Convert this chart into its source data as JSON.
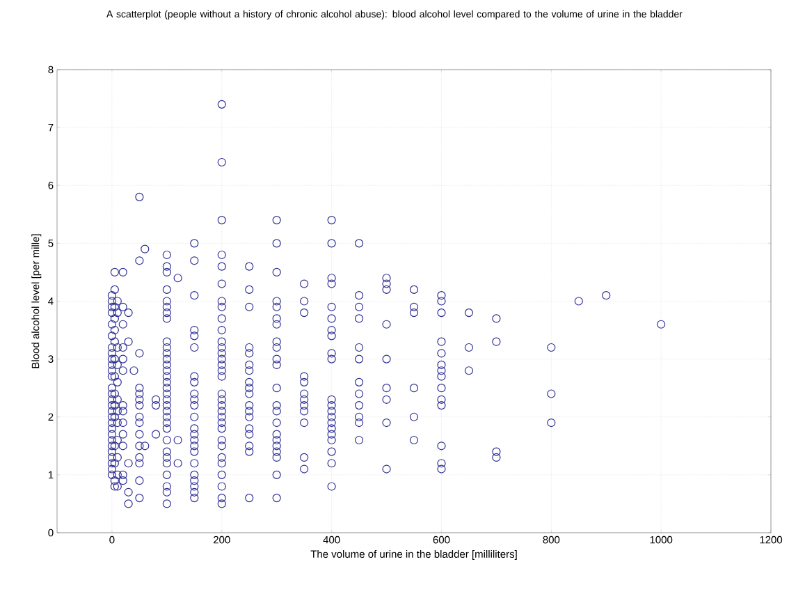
{
  "chart_data": {
    "type": "scatter",
    "title": "A scatterplot (people without a history of chronic alcohol abuse): blood alcohol level compared to the volume of urine in the bladder",
    "xlabel": "The volume of urine in the bladder [milliliters]",
    "ylabel": "Blood alcohol level [per mille]",
    "xlim": [
      -100,
      1200
    ],
    "ylim": [
      0,
      8
    ],
    "xticks": [
      0,
      200,
      400,
      600,
      800,
      1000,
      1200
    ],
    "yticks": [
      0,
      1,
      2,
      3,
      4,
      5,
      6,
      7,
      8
    ],
    "grid": true,
    "marker": "circle",
    "color": "#2e2e96",
    "x": [
      0,
      0,
      0,
      0,
      0,
      0,
      0,
      0,
      0,
      0,
      0,
      0,
      0,
      0,
      0,
      0,
      0,
      0,
      0,
      0,
      0,
      0,
      0,
      0,
      0,
      0,
      0,
      0,
      5,
      5,
      5,
      5,
      5,
      5,
      5,
      5,
      5,
      5,
      5,
      5,
      5,
      5,
      5,
      10,
      10,
      10,
      10,
      10,
      10,
      10,
      10,
      10,
      10,
      10,
      10,
      20,
      20,
      20,
      20,
      20,
      20,
      20,
      20,
      20,
      20,
      20,
      20,
      20,
      30,
      30,
      30,
      30,
      30,
      40,
      50,
      50,
      50,
      50,
      50,
      50,
      50,
      50,
      50,
      50,
      50,
      50,
      50,
      50,
      50,
      60,
      60,
      80,
      80,
      80,
      100,
      100,
      100,
      100,
      100,
      100,
      100,
      100,
      100,
      100,
      100,
      100,
      100,
      100,
      100,
      100,
      100,
      100,
      100,
      100,
      100,
      100,
      100,
      100,
      100,
      100,
      100,
      100,
      100,
      100,
      100,
      100,
      120,
      120,
      120,
      150,
      150,
      150,
      150,
      150,
      150,
      150,
      150,
      150,
      150,
      150,
      150,
      150,
      150,
      150,
      150,
      150,
      150,
      150,
      150,
      150,
      150,
      150,
      200,
      200,
      200,
      200,
      200,
      200,
      200,
      200,
      200,
      200,
      200,
      200,
      200,
      200,
      200,
      200,
      200,
      200,
      200,
      200,
      200,
      200,
      200,
      200,
      200,
      200,
      200,
      200,
      200,
      200,
      200,
      200,
      250,
      250,
      250,
      250,
      250,
      250,
      250,
      250,
      250,
      250,
      250,
      250,
      250,
      250,
      250,
      250,
      250,
      250,
      300,
      300,
      300,
      300,
      300,
      300,
      300,
      300,
      300,
      300,
      300,
      300,
      300,
      300,
      300,
      300,
      300,
      300,
      300,
      300,
      300,
      300,
      350,
      350,
      350,
      350,
      350,
      350,
      350,
      350,
      350,
      350,
      350,
      350,
      400,
      400,
      400,
      400,
      400,
      400,
      400,
      400,
      400,
      400,
      400,
      400,
      400,
      400,
      400,
      400,
      400,
      400,
      400,
      400,
      400,
      450,
      450,
      450,
      450,
      450,
      450,
      450,
      450,
      450,
      450,
      450,
      450,
      500,
      500,
      500,
      500,
      500,
      500,
      500,
      500,
      500,
      550,
      550,
      550,
      550,
      550,
      550,
      600,
      600,
      600,
      600,
      600,
      600,
      600,
      600,
      600,
      600,
      600,
      600,
      600,
      600,
      650,
      650,
      650,
      700,
      700,
      700,
      700,
      800,
      800,
      800,
      850,
      900,
      1000
    ],
    "values": [
      1.0,
      1.1,
      1.2,
      1.3,
      1.4,
      1.5,
      1.6,
      1.7,
      1.8,
      1.9,
      2.0,
      2.1,
      2.2,
      2.3,
      2.4,
      2.5,
      2.7,
      2.8,
      2.9,
      3.0,
      3.1,
      3.2,
      3.4,
      3.6,
      3.8,
      3.9,
      4.0,
      4.1,
      4.2,
      4.5,
      0.8,
      0.9,
      1.2,
      1.5,
      2.0,
      2.2,
      2.4,
      2.7,
      3.0,
      3.3,
      3.5,
      3.7,
      3.9,
      0.8,
      1.0,
      1.3,
      1.6,
      1.9,
      2.1,
      2.3,
      2.6,
      2.9,
      3.2,
      3.8,
      4.0,
      0.9,
      1.0,
      1.5,
      1.7,
      1.9,
      2.1,
      2.2,
      2.8,
      3.0,
      3.2,
      3.6,
      3.9,
      4.5,
      0.5,
      0.7,
      1.2,
      3.3,
      3.8,
      2.8,
      5.8,
      4.7,
      3.1,
      2.5,
      2.4,
      2.3,
      2.2,
      2.0,
      1.9,
      1.7,
      1.5,
      1.3,
      1.2,
      0.9,
      0.6,
      4.9,
      1.5,
      2.3,
      2.2,
      1.7,
      4.8,
      4.6,
      4.5,
      4.2,
      4.0,
      3.9,
      3.8,
      3.7,
      3.3,
      3.2,
      3.1,
      3.0,
      2.9,
      2.8,
      2.7,
      2.6,
      2.5,
      2.4,
      2.3,
      2.2,
      2.1,
      2.0,
      1.9,
      1.8,
      1.6,
      1.4,
      1.3,
      1.2,
      1.0,
      0.8,
      0.7,
      0.5,
      4.4,
      1.6,
      1.2,
      5.0,
      4.7,
      4.1,
      3.5,
      3.4,
      3.2,
      2.7,
      2.6,
      2.4,
      2.3,
      2.2,
      2.0,
      1.8,
      1.7,
      1.6,
      1.5,
      1.4,
      1.2,
      1.0,
      0.9,
      0.8,
      0.7,
      0.6,
      7.4,
      6.4,
      5.4,
      4.8,
      4.6,
      4.3,
      4.0,
      3.9,
      3.7,
      3.5,
      3.3,
      3.2,
      3.1,
      3.0,
      2.9,
      2.8,
      2.7,
      2.4,
      2.3,
      2.2,
      2.1,
      2.0,
      1.9,
      1.8,
      1.6,
      1.5,
      1.3,
      1.2,
      1.0,
      0.8,
      0.6,
      0.5,
      4.6,
      4.2,
      3.9,
      3.2,
      3.1,
      2.9,
      2.8,
      2.6,
      2.5,
      2.4,
      2.2,
      2.1,
      2.0,
      1.8,
      1.7,
      1.5,
      1.4,
      0.6,
      5.4,
      5.0,
      4.5,
      4.0,
      3.9,
      3.7,
      3.6,
      3.3,
      3.2,
      3.0,
      2.9,
      2.5,
      2.2,
      2.1,
      1.9,
      1.7,
      1.6,
      1.5,
      1.4,
      1.3,
      1.0,
      0.6,
      4.3,
      4.0,
      3.8,
      2.7,
      2.6,
      2.4,
      2.3,
      2.2,
      2.1,
      1.9,
      1.3,
      1.1,
      5.4,
      5.0,
      4.4,
      4.3,
      3.9,
      3.7,
      3.5,
      3.4,
      3.1,
      3.0,
      2.3,
      2.2,
      2.1,
      2.0,
      1.9,
      1.8,
      1.7,
      1.6,
      1.4,
      1.2,
      0.8,
      5.0,
      4.1,
      3.9,
      3.7,
      3.2,
      3.0,
      2.6,
      2.4,
      2.2,
      2.0,
      1.9,
      1.6,
      4.4,
      4.3,
      4.2,
      3.6,
      3.0,
      2.5,
      2.3,
      1.9,
      1.1,
      4.2,
      3.9,
      3.8,
      2.5,
      2.0,
      1.6,
      4.1,
      4.0,
      3.8,
      3.3,
      3.1,
      2.9,
      2.8,
      2.7,
      2.5,
      2.3,
      2.2,
      1.5,
      1.2,
      1.1,
      3.8,
      3.2,
      2.8,
      3.7,
      3.3,
      1.4,
      1.3,
      3.2,
      2.4,
      1.9,
      4.0,
      4.1,
      3.6
    ]
  }
}
